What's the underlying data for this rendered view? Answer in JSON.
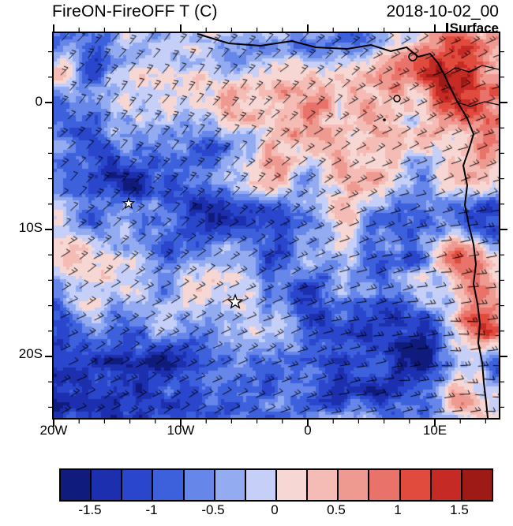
{
  "header": {
    "title": "FireON-FireOFF T (C)",
    "date": "2018-10-02_00",
    "level": "Surface"
  },
  "axes": {
    "x_ticks": [
      "20W",
      "10W",
      "0",
      "10E"
    ],
    "y_ticks": [
      "0",
      "10S",
      "20S"
    ]
  },
  "chart_data": {
    "type": "heatmap",
    "title": "FireON-FireOFF T (C)",
    "timestamp": "2018-10-02_00",
    "level": "Surface",
    "variable": "Surface air temperature difference, FireON minus FireOFF",
    "units": "C",
    "x_axis": {
      "tick_labels": [
        "20W",
        "10W",
        "0",
        "10E"
      ],
      "range_deg_lon": [
        -20,
        15
      ]
    },
    "y_axis": {
      "tick_labels": [
        "0",
        "10S",
        "20S"
      ],
      "range_deg_lat": [
        5.5,
        -25
      ]
    },
    "colorbar": {
      "tick_labels": [
        "-1.5",
        "-1",
        "-0.5",
        "0",
        "0.5",
        "1",
        "1.5"
      ],
      "levels": [
        -1.5,
        -1,
        -0.5,
        0,
        0.5,
        1,
        1.5
      ],
      "cell_interval": 0.25,
      "colors": [
        "#101c7d",
        "#1c2fae",
        "#2946cc",
        "#3d61dd",
        "#6686e9",
        "#93abf1",
        "#c5cff7",
        "#f7d7d3",
        "#f4bcb5",
        "#ef9a91",
        "#e9736a",
        "#e14b3e",
        "#c52b24",
        "#9e1a17"
      ]
    },
    "overlays": [
      "wind-barbs",
      "african-coastline",
      "island-outlines",
      "two-star-markers"
    ],
    "markers": [
      {
        "shape": "star",
        "lon_approx": "14W",
        "lat_approx": "8S"
      },
      {
        "shape": "star",
        "lon_approx": "6W",
        "lat_approx": "16S"
      }
    ],
    "field_summary": "Pixelated model-difference field: predominantly pale pink (0 to +0.5 C) over the ocean, light-blue bands (-0.5 to 0 C) across the central and southern interior, strong negative patches (below -1 C) in the lower-left and along the top edge, and strong positive patches (above +1 C) near and inland of the Angola coast along the right edge."
  }
}
